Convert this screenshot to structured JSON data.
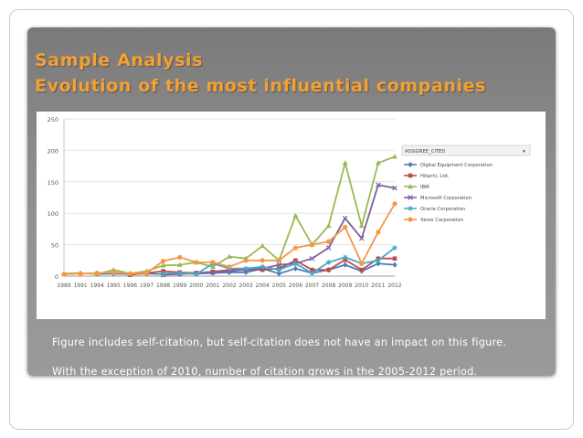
{
  "slide": {
    "title": "Sample Analysis",
    "subtitle": "Evolution of the most influential companies",
    "notes": [
      "Figure includes self-citation, but self-citation does not have an impact on this figure.",
      "With the exception of 2010, number of citation grows in the 2005-2012 period."
    ]
  },
  "colors": {
    "title": "#f6a031",
    "panel": "#8c8c8c"
  },
  "chart_data": {
    "type": "line",
    "title": "",
    "xlabel": "",
    "ylabel": "",
    "ylim": [
      0,
      250
    ],
    "yticks": [
      0,
      50,
      100,
      150,
      200,
      250
    ],
    "grid": true,
    "legend_position": "right",
    "legend_title": "ASSIGNEE_CITED",
    "categories": [
      "1989",
      "1991",
      "1994",
      "1995",
      "1996",
      "1997",
      "1998",
      "1999",
      "2000",
      "2001",
      "2002",
      "2003",
      "2004",
      "2005",
      "2006",
      "2007",
      "2008",
      "2009",
      "2010",
      "2011",
      "2012"
    ],
    "series": [
      {
        "name": "Digital Equipment Corporation",
        "color": "#4a7ebb",
        "marker": "diamond",
        "values": [
          null,
          null,
          3,
          4,
          3,
          4,
          3,
          4,
          4,
          5,
          6,
          6,
          12,
          4,
          12,
          5,
          10,
          18,
          8,
          20,
          18
        ]
      },
      {
        "name": "Hitachi, Ltd.",
        "color": "#be4b48",
        "marker": "square",
        "values": [
          null,
          null,
          3,
          null,
          2,
          5,
          8,
          6,
          5,
          7,
          10,
          10,
          10,
          12,
          25,
          10,
          10,
          26,
          10,
          28,
          28
        ]
      },
      {
        "name": "IBM",
        "color": "#98b954",
        "marker": "triangle",
        "values": [
          4,
          5,
          3,
          10,
          4,
          8,
          17,
          18,
          22,
          15,
          31,
          28,
          48,
          25,
          96,
          50,
          80,
          180,
          80,
          180,
          190
        ]
      },
      {
        "name": "Microsoft Corporation",
        "color": "#7d60a0",
        "marker": "x",
        "values": [
          null,
          null,
          null,
          null,
          null,
          null,
          2,
          3,
          5,
          6,
          8,
          10,
          12,
          18,
          20,
          28,
          45,
          92,
          60,
          145,
          140
        ]
      },
      {
        "name": "Oracle Corporation",
        "color": "#46aac5",
        "marker": "asterisk",
        "values": [
          null,
          null,
          null,
          null,
          null,
          null,
          4,
          5,
          3,
          20,
          12,
          12,
          15,
          10,
          20,
          5,
          22,
          30,
          20,
          25,
          45
        ]
      },
      {
        "name": "Xerox Corporation",
        "color": "#f79646",
        "marker": "circle",
        "values": [
          3,
          4,
          5,
          6,
          4,
          5,
          24,
          30,
          22,
          22,
          15,
          25,
          25,
          25,
          45,
          50,
          55,
          78,
          20,
          70,
          115
        ]
      }
    ]
  }
}
